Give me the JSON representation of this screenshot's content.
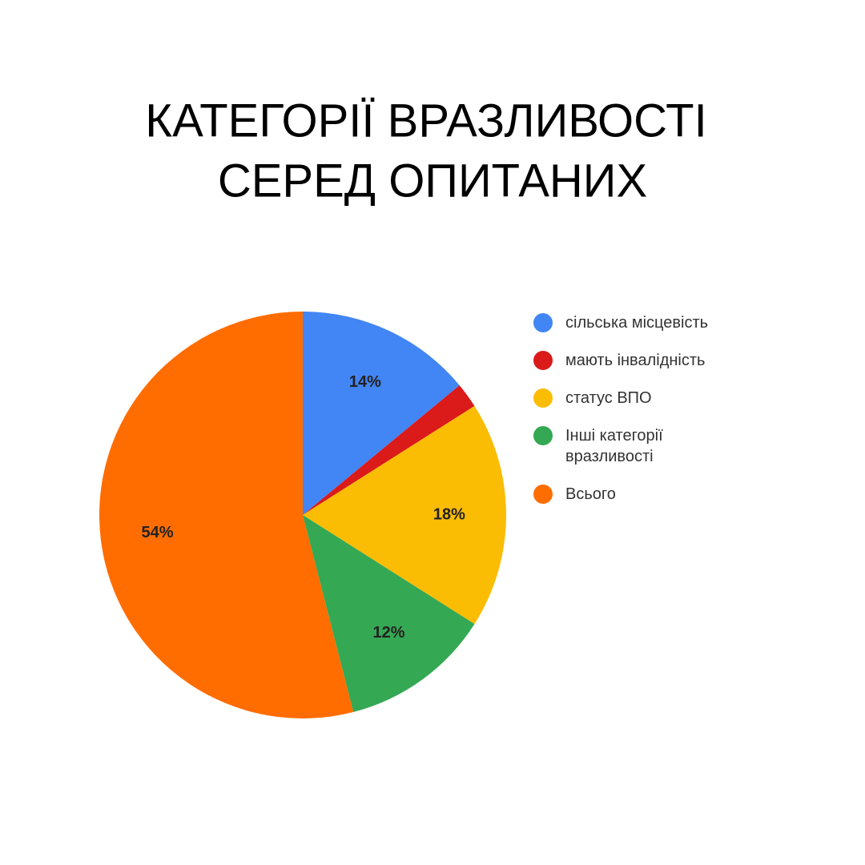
{
  "chart_data": {
    "type": "pie",
    "title": "КАТЕГОРІЇ ВРАЗЛИВОСТІ",
    "subtitle": "СЕРЕД ОПИТАНИХ",
    "categories": [
      "сільська місцевість",
      "мають інвалідність",
      "статус ВПО",
      "Інші категорії вразливості",
      "Всього"
    ],
    "values": [
      14,
      2,
      18,
      12,
      54
    ],
    "value_labels": [
      "14%",
      null,
      "18%",
      "12%",
      "54%"
    ],
    "colors": [
      "#4285f4",
      "#db1a1a",
      "#fbbc04",
      "#34a853",
      "#ff6d01"
    ],
    "legend": "right"
  }
}
